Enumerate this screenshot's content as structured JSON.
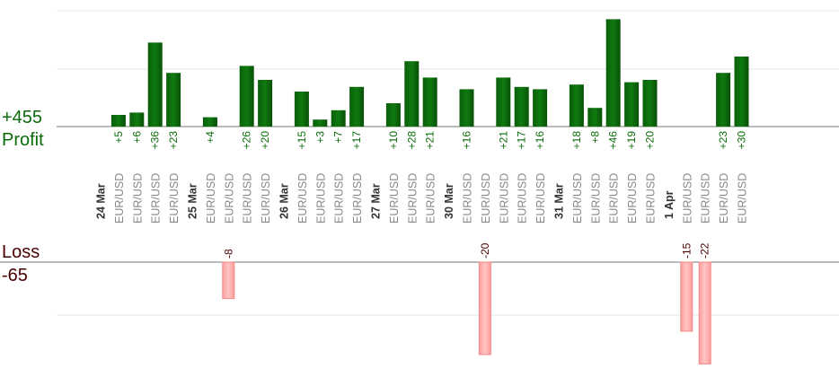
{
  "summary": {
    "profit_total": "+455",
    "profit_label": "Profit",
    "loss_label": "Loss",
    "loss_total": "-65"
  },
  "colors": {
    "profit_bar": "#0b6a0b",
    "profit_text": "#0a6b0a",
    "loss_bar": "#ffb3b3",
    "loss_text": "#4a0000",
    "grid": "#e6e6e6",
    "axis": "#777777",
    "pair_text": "#888888",
    "date_text": "#333333"
  },
  "chart_data": {
    "type": "bar",
    "title": "",
    "profit_axis": {
      "ylim": [
        0,
        50
      ],
      "grid": true
    },
    "loss_axis": {
      "ylim": [
        -25,
        0
      ],
      "grid": true
    },
    "columns": [
      {
        "kind": "date",
        "label": "24 Mar"
      },
      {
        "kind": "trade",
        "pair": "EUR/USD",
        "value": 5,
        "label": "+5"
      },
      {
        "kind": "trade",
        "pair": "EUR/USD",
        "value": 6,
        "label": "+6"
      },
      {
        "kind": "trade",
        "pair": "EUR/USD",
        "value": 36,
        "label": "+36"
      },
      {
        "kind": "trade",
        "pair": "EUR/USD",
        "value": 23,
        "label": "+23"
      },
      {
        "kind": "date",
        "label": "25 Mar"
      },
      {
        "kind": "trade",
        "pair": "EUR/USD",
        "value": 4,
        "label": "+4"
      },
      {
        "kind": "trade",
        "pair": "EUR/USD",
        "value": -8,
        "label": "-8"
      },
      {
        "kind": "trade",
        "pair": "EUR/USD",
        "value": 26,
        "label": "+26"
      },
      {
        "kind": "trade",
        "pair": "EUR/USD",
        "value": 20,
        "label": "+20"
      },
      {
        "kind": "date",
        "label": "26 Mar"
      },
      {
        "kind": "trade",
        "pair": "EUR/USD",
        "value": 15,
        "label": "+15"
      },
      {
        "kind": "trade",
        "pair": "EUR/USD",
        "value": 3,
        "label": "+3"
      },
      {
        "kind": "trade",
        "pair": "EUR/USD",
        "value": 7,
        "label": "+7"
      },
      {
        "kind": "trade",
        "pair": "EUR/USD",
        "value": 17,
        "label": "+17"
      },
      {
        "kind": "date",
        "label": "27 Mar"
      },
      {
        "kind": "trade",
        "pair": "EUR/USD",
        "value": 10,
        "label": "+10"
      },
      {
        "kind": "trade",
        "pair": "EUR/USD",
        "value": 28,
        "label": "+28"
      },
      {
        "kind": "trade",
        "pair": "EUR/USD",
        "value": 21,
        "label": "+21"
      },
      {
        "kind": "date",
        "label": "30 Mar"
      },
      {
        "kind": "trade",
        "pair": "EUR/USD",
        "value": 16,
        "label": "+16"
      },
      {
        "kind": "trade",
        "pair": "EUR/USD",
        "value": -20,
        "label": "-20"
      },
      {
        "kind": "trade",
        "pair": "EUR/USD",
        "value": 21,
        "label": "+21"
      },
      {
        "kind": "trade",
        "pair": "EUR/USD",
        "value": 17,
        "label": "+17"
      },
      {
        "kind": "trade",
        "pair": "EUR/USD",
        "value": 16,
        "label": "+16"
      },
      {
        "kind": "date",
        "label": "31 Mar"
      },
      {
        "kind": "trade",
        "pair": "EUR/USD",
        "value": 18,
        "label": "+18"
      },
      {
        "kind": "trade",
        "pair": "EUR/USD",
        "value": 8,
        "label": "+8"
      },
      {
        "kind": "trade",
        "pair": "EUR/USD",
        "value": 46,
        "label": "+46"
      },
      {
        "kind": "trade",
        "pair": "EUR/USD",
        "value": 19,
        "label": "+19"
      },
      {
        "kind": "trade",
        "pair": "EUR/USD",
        "value": 20,
        "label": "+20"
      },
      {
        "kind": "date",
        "label": "1 Apr"
      },
      {
        "kind": "trade",
        "pair": "EUR/USD",
        "value": -15,
        "label": "-15"
      },
      {
        "kind": "trade",
        "pair": "EUR/USD",
        "value": -22,
        "label": "-22"
      },
      {
        "kind": "trade",
        "pair": "EUR/USD",
        "value": 23,
        "label": "+23"
      },
      {
        "kind": "trade",
        "pair": "EUR/USD",
        "value": 30,
        "label": "+30"
      }
    ]
  }
}
